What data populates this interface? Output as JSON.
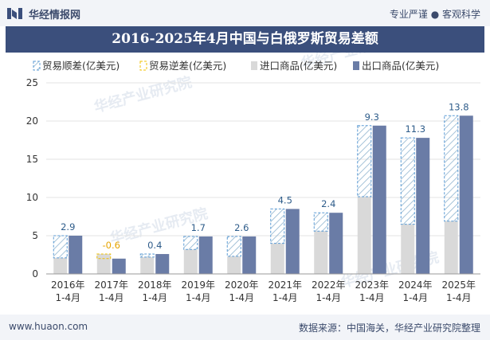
{
  "header": {
    "brand": "华经情报网",
    "slogan": "专业严谨 ● 客观科学"
  },
  "footer": {
    "website": "www.huaon.com",
    "source": "数据来源：中国海关，华经产业研究院整理"
  },
  "watermark": "华经产业研究院",
  "colors": {
    "header_bg": "#3b4f7c",
    "import": "#d9d9d9",
    "export": "#6a7ca6",
    "surplus_stroke": "#5b9bd5",
    "deficit_stroke": "#f0c000",
    "surplus_label": "#2e5c8a",
    "deficit_label": "#e6a400"
  },
  "chart_data": {
    "type": "bar",
    "title": "2016-2025年4月中国与白俄罗斯贸易差额",
    "categories": [
      "2016年\n1-4月",
      "2017年\n1-4月",
      "2018年\n1-4月",
      "2019年\n1-4月",
      "2020年\n1-4月",
      "2021年\n1-4月",
      "2022年\n1-4月",
      "2023年\n1-4月",
      "2024年\n1-4月",
      "2025年\n1-4月"
    ],
    "series": [
      {
        "name": "贸易顺差(亿美元)",
        "values": [
          2.9,
          null,
          0.4,
          1.7,
          2.6,
          4.5,
          2.4,
          9.3,
          11.3,
          13.8
        ]
      },
      {
        "name": "贸易逆差(亿美元)",
        "values": [
          null,
          -0.6,
          null,
          null,
          null,
          null,
          null,
          null,
          null,
          null
        ]
      },
      {
        "name": "进口商品(亿美元)",
        "values": [
          2.1,
          2.6,
          2.2,
          3.2,
          2.3,
          4.0,
          5.6,
          10.1,
          6.5,
          6.9
        ]
      },
      {
        "name": "出口商品(亿美元)",
        "values": [
          5.0,
          2.0,
          2.6,
          4.9,
          4.9,
          8.5,
          8.0,
          19.4,
          17.8,
          20.7
        ]
      }
    ],
    "data_labels": [
      "2.9",
      "-0.6",
      "0.4",
      "1.7",
      "2.6",
      "4.5",
      "2.4",
      "9.3",
      "11.3",
      "13.8"
    ],
    "ylim": [
      0,
      25
    ],
    "yticks": [
      0,
      5,
      10,
      15,
      20,
      25
    ],
    "grid": true,
    "legend_position": "top-left"
  }
}
